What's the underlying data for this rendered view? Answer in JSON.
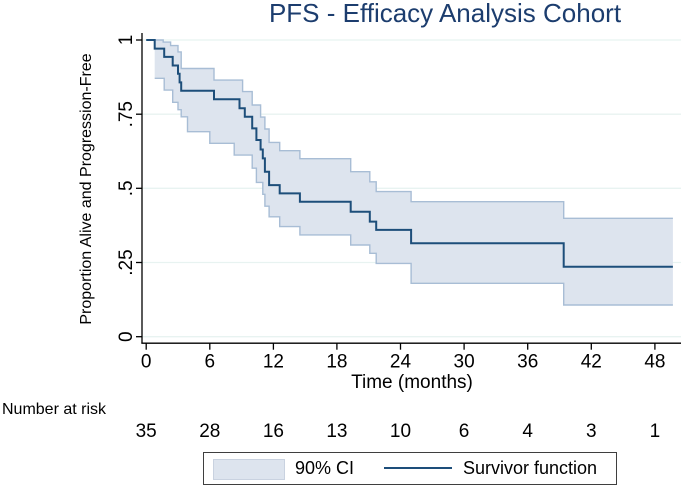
{
  "title": "PFS - Efficacy Analysis Cohort",
  "colors": {
    "title_text": "#1c3d6e",
    "survivor_line": "#1d4e7a",
    "ci_fill": "#dde4ee",
    "ci_edge": "#a8bdd5",
    "gridline": "#e8f3f1",
    "axis": "#000000",
    "legend_border": "#3f3f3f",
    "text": "#000000"
  },
  "chart_data": {
    "type": "line",
    "subtype": "kaplan-meier-step",
    "title": "PFS - Efficacy Analysis Cohort",
    "xlabel": "Time (months)",
    "ylabel": "Proportion Alive and Progression-Free",
    "xlim": [
      -0.4,
      50.5
    ],
    "ylim": [
      0,
      1
    ],
    "x_ticks": [
      0,
      6,
      12,
      18,
      24,
      30,
      36,
      42,
      48
    ],
    "y_ticks": {
      "values": [
        0,
        0.25,
        0.5,
        0.75,
        1
      ],
      "labels": [
        "0",
        ".25",
        ".5",
        ".75",
        "1"
      ]
    },
    "grid": "horizontal",
    "legend": {
      "position": "bottom",
      "entries": [
        "90% CI",
        "Survivor function"
      ]
    },
    "end_t": 49.7,
    "series": [
      {
        "name": "Survivor function",
        "role": "survivor",
        "steps": [
          [
            0,
            1
          ],
          [
            0.8,
            0.971
          ],
          [
            1.7,
            0.943
          ],
          [
            2.5,
            0.914
          ],
          [
            3.0,
            0.886
          ],
          [
            3.15,
            0.857
          ],
          [
            3.3,
            0.829
          ],
          [
            6.4,
            0.8
          ],
          [
            8.8,
            0.77
          ],
          [
            9.3,
            0.741
          ],
          [
            10.0,
            0.702
          ],
          [
            10.4,
            0.663
          ],
          [
            10.8,
            0.631
          ],
          [
            11.0,
            0.601
          ],
          [
            11.2,
            0.556
          ],
          [
            11.6,
            0.511
          ],
          [
            12.6,
            0.483
          ],
          [
            14.5,
            0.455
          ],
          [
            19.3,
            0.421
          ],
          [
            21.1,
            0.388
          ],
          [
            21.7,
            0.36
          ],
          [
            25.0,
            0.315
          ],
          [
            39.4,
            0.236
          ]
        ]
      },
      {
        "name": "90% CI upper",
        "role": "ci_upper",
        "steps": [
          [
            0.8,
            1.0
          ],
          [
            1.6,
            0.993
          ],
          [
            2.3,
            0.981
          ],
          [
            3.0,
            0.96
          ],
          [
            3.3,
            0.904
          ],
          [
            6.4,
            0.865
          ],
          [
            9.1,
            0.826
          ],
          [
            10.0,
            0.781
          ],
          [
            10.8,
            0.74
          ],
          [
            11.2,
            0.7
          ],
          [
            11.6,
            0.655
          ],
          [
            12.6,
            0.627
          ],
          [
            14.5,
            0.6
          ],
          [
            19.3,
            0.556
          ],
          [
            21.1,
            0.522
          ],
          [
            21.7,
            0.489
          ],
          [
            25.0,
            0.455
          ],
          [
            39.4,
            0.399
          ]
        ]
      },
      {
        "name": "90% CI lower",
        "role": "ci_lower",
        "steps": [
          [
            0.8,
            0.871
          ],
          [
            1.7,
            0.831
          ],
          [
            2.5,
            0.79
          ],
          [
            3.0,
            0.765
          ],
          [
            3.3,
            0.741
          ],
          [
            3.9,
            0.691
          ],
          [
            6.0,
            0.652
          ],
          [
            8.3,
            0.612
          ],
          [
            10.0,
            0.568
          ],
          [
            10.4,
            0.52
          ],
          [
            11.0,
            0.48
          ],
          [
            11.2,
            0.44
          ],
          [
            11.6,
            0.404
          ],
          [
            12.6,
            0.371
          ],
          [
            14.5,
            0.343
          ],
          [
            19.3,
            0.309
          ],
          [
            21.1,
            0.281
          ],
          [
            21.7,
            0.247
          ],
          [
            25.0,
            0.18
          ],
          [
            39.4,
            0.107
          ]
        ]
      }
    ]
  },
  "risk_table": {
    "label": "Number at risk",
    "times": [
      0,
      6,
      12,
      18,
      24,
      30,
      36,
      42,
      48
    ],
    "counts": [
      "35",
      "28",
      "16",
      "13",
      "10",
      "6",
      "4",
      "3",
      "1"
    ]
  }
}
